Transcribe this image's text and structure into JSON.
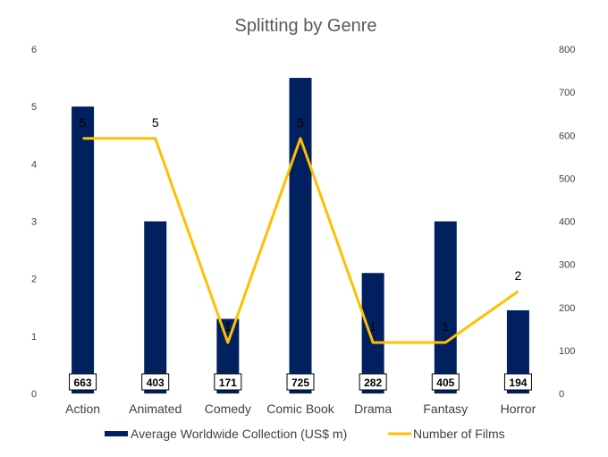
{
  "chart_data": {
    "type": "bar",
    "title": "Splitting by Genre",
    "categories": [
      "Action",
      "Animated",
      "Comedy",
      "Comic Book",
      "Drama",
      "Fantasy",
      "Horror"
    ],
    "series": [
      {
        "name": "Average Worldwide Collection (US$ m)",
        "type": "bar",
        "axis": "left",
        "color": "#002060",
        "values": [
          5,
          3,
          1.3,
          5.5,
          2.1,
          3,
          1.45
        ],
        "labels": [
          "663",
          "403",
          "171",
          "725",
          "282",
          "405",
          "194"
        ]
      },
      {
        "name": "Number of Films",
        "type": "line",
        "axis": "right",
        "color": "#FFC000",
        "values": [
          5,
          5,
          1,
          5,
          1,
          1,
          2
        ]
      }
    ],
    "y_left": {
      "min": 0,
      "max": 6,
      "ticks": [
        "0",
        "1",
        "2",
        "3",
        "4",
        "5",
        "6"
      ]
    },
    "y_right": {
      "min": 0,
      "max": 800,
      "ticks": [
        "0",
        "100",
        "200",
        "300",
        "400",
        "500",
        "600",
        "700",
        "800"
      ]
    },
    "grid": false,
    "legend_position": "bottom"
  }
}
